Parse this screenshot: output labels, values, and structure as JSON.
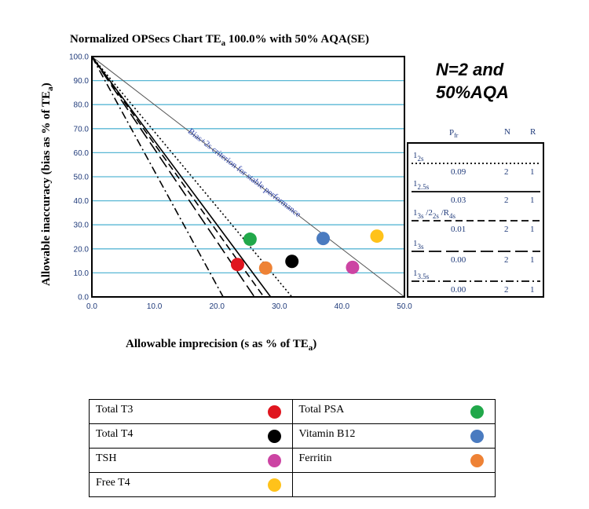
{
  "chart_data": {
    "type": "scatter",
    "title_main": "Normalized OPSecs Chart TE",
    "title_sub": "a",
    "title_tail": " 100.0% with 50% AQA(SE)",
    "xlabel_main": "Allowable imprecision (s as % of TE",
    "xlabel_sub": "a",
    "xlabel_tail": ")",
    "ylabel_main": "Allowable inaccuracy (bias as % of TE",
    "ylabel_sub": "a",
    "ylabel_tail": ")",
    "xlim": [
      0,
      50
    ],
    "ylim": [
      0,
      100
    ],
    "xticks": [
      "0.0",
      "10.0",
      "20.0",
      "30.0",
      "40.0",
      "50.0"
    ],
    "yticks": [
      "0.0",
      "10.0",
      "20.0",
      "30.0",
      "40.0",
      "50.0",
      "60.0",
      "70.0",
      "80.0",
      "90.0",
      "100.0"
    ],
    "grid": "horizontal",
    "annotation": "Bias+2s  criterion for stable performance",
    "note_line1": "N=2 and",
    "note_line2": "50%AQA",
    "stable_line": {
      "x_intercept": 50
    },
    "rule_lines": [
      {
        "x_intercept": 32.0,
        "style": "dotted"
      },
      {
        "x_intercept": 28.6,
        "style": "solid"
      },
      {
        "x_intercept": 27.5,
        "style": "dashed"
      },
      {
        "x_intercept": 26.0,
        "style": "long-dash"
      },
      {
        "x_intercept": 21.0,
        "style": "dash-dot"
      }
    ],
    "points": [
      {
        "name": "Total T3",
        "x": 23.3,
        "y": 13.5,
        "color": "#e0161f"
      },
      {
        "name": "Total T4",
        "x": 32.0,
        "y": 14.8,
        "color": "#000000"
      },
      {
        "name": "TSH",
        "x": 41.7,
        "y": 12.3,
        "color": "#cc44a3"
      },
      {
        "name": "Free T4",
        "x": 45.6,
        "y": 25.3,
        "color": "#ffc21a"
      },
      {
        "name": "Total PSA",
        "x": 25.3,
        "y": 24.0,
        "color": "#21a84a"
      },
      {
        "name": "Vitamin B12",
        "x": 37.0,
        "y": 24.3,
        "color": "#4a7bc0"
      },
      {
        "name": "Ferritin",
        "x": 27.8,
        "y": 12.0,
        "color": "#ee8235"
      }
    ]
  },
  "rules_table": {
    "headers": {
      "pfr_main": "P",
      "pfr_sub": "fr",
      "n": "N",
      "r": "R"
    },
    "rows": [
      {
        "rule_main": "1",
        "rule_sub": "2s",
        "rule_rest": [],
        "pfr": "0.09",
        "n": "2",
        "r": "1",
        "style": "dotted"
      },
      {
        "rule_main": "1",
        "rule_sub": "2.5s",
        "rule_rest": [],
        "pfr": "0.03",
        "n": "2",
        "r": "1",
        "style": "solid"
      },
      {
        "rule_main": "1",
        "rule_sub": "3s",
        "rule_rest": [
          {
            "t": " /2",
            "sub": false
          },
          {
            "t": "2s",
            "sub": true
          },
          {
            "t": " /R",
            "sub": false
          },
          {
            "t": "4s",
            "sub": true
          }
        ],
        "pfr": "0.01",
        "n": "2",
        "r": "1",
        "style": "dashed"
      },
      {
        "rule_main": "1",
        "rule_sub": "3s",
        "rule_rest": [],
        "pfr": "0.00",
        "n": "2",
        "r": "1",
        "style": "long-dash"
      },
      {
        "rule_main": "1",
        "rule_sub": "3.5s",
        "rule_rest": [],
        "pfr": "0.00",
        "n": "2",
        "r": "1",
        "style": "dash-dot"
      }
    ]
  },
  "legend": {
    "rows": [
      [
        {
          "label": "Total T3",
          "color": "#e0161f"
        },
        {
          "label": "Total PSA",
          "color": "#21a84a"
        }
      ],
      [
        {
          "label": "Total T4",
          "color": "#000000"
        },
        {
          "label": "Vitamin B12",
          "color": "#4a7bc0"
        }
      ],
      [
        {
          "label": "TSH",
          "color": "#cc44a3"
        },
        {
          "label": "Ferritin",
          "color": "#ee8235"
        }
      ],
      [
        {
          "label": "Free T4",
          "color": "#ffc21a"
        },
        {
          "label": "",
          "color": ""
        }
      ]
    ]
  }
}
